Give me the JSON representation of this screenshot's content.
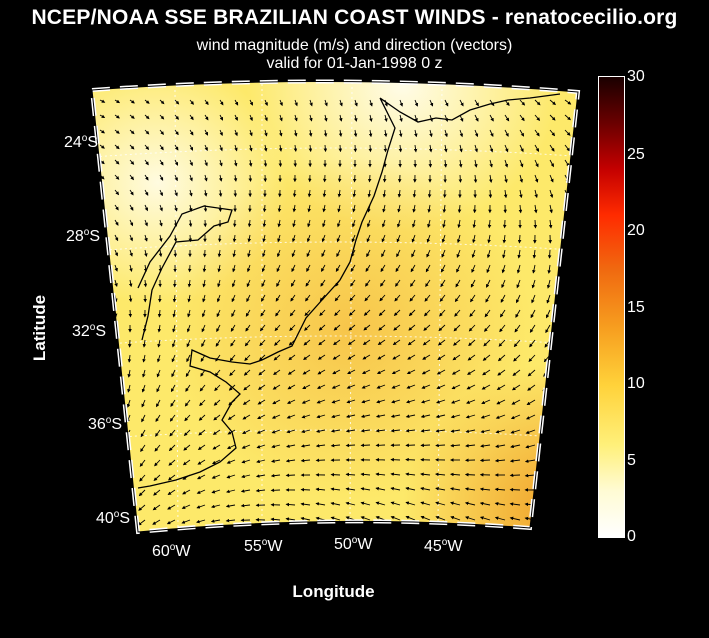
{
  "title": "NCEP/NOAA SSE BRAZILIAN COAST WINDS - renatocecilio.org",
  "subtitle": "wind magnitude (m/s) and direction (vectors)",
  "valid_line": "valid for 01-Jan-1998  0 z",
  "xlabel": "Longitude",
  "ylabel": "Latitude",
  "lat_labels": [
    {
      "deg": "24",
      "hemi": "S"
    },
    {
      "deg": "28",
      "hemi": "S"
    },
    {
      "deg": "32",
      "hemi": "S"
    },
    {
      "deg": "36",
      "hemi": "S"
    },
    {
      "deg": "40",
      "hemi": "S"
    }
  ],
  "lon_labels": [
    {
      "deg": "60",
      "hemi": "W"
    },
    {
      "deg": "55",
      "hemi": "W"
    },
    {
      "deg": "50",
      "hemi": "W"
    },
    {
      "deg": "45",
      "hemi": "W"
    }
  ],
  "colorbar": {
    "ticks": [
      "30",
      "25",
      "20",
      "15",
      "10",
      "5",
      "0"
    ],
    "range": [
      0,
      30
    ],
    "colors": [
      "#ffffff",
      "#fff07a",
      "#ffd23a",
      "#f7a020",
      "#ff2b00",
      "#6a0000",
      "#000000"
    ]
  },
  "colors": {
    "background": "#000000",
    "land": "#fde96a",
    "ocean_low": "#fff6b8",
    "vector": "#000000"
  }
}
